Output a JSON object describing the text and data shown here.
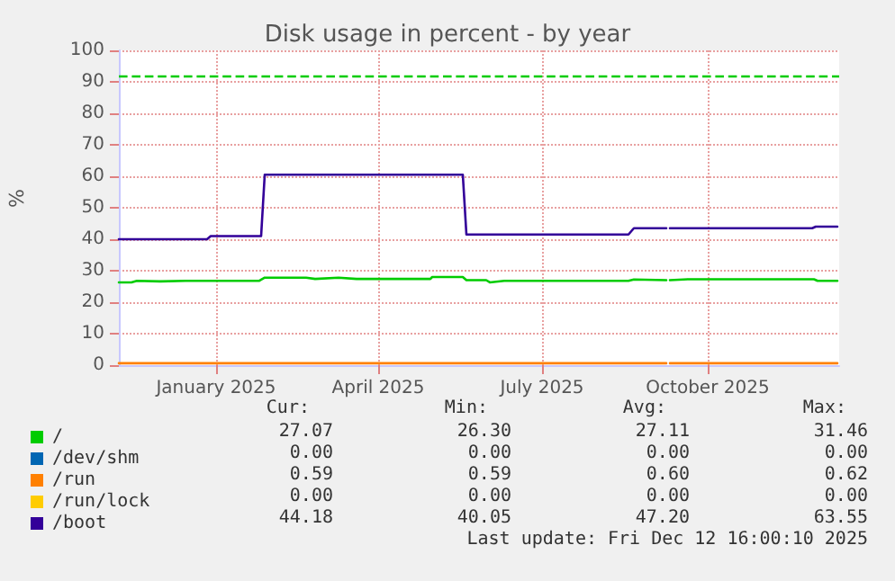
{
  "chart_data": {
    "type": "line",
    "title": "Disk usage in percent - by year",
    "ylabel": "%",
    "xlim": [
      "2024-11-08",
      "2025-12-13"
    ],
    "xticks": [
      {
        "value": "2025-01-01",
        "label": "January 2025"
      },
      {
        "value": "2025-04-01",
        "label": "April 2025"
      },
      {
        "value": "2025-07-01",
        "label": "July 2025"
      },
      {
        "value": "2025-10-01",
        "label": "October 2025"
      }
    ],
    "ylim": [
      0,
      100
    ],
    "yticks": [
      0,
      10,
      20,
      30,
      40,
      50,
      60,
      70,
      80,
      90,
      100
    ],
    "grid": true,
    "legend": "bottom left",
    "marker": "none",
    "line_style": "solid",
    "ref_lines": [
      {
        "axis": "y",
        "value": 92,
        "color": "#00cc00",
        "line_style": "dashed"
      }
    ],
    "series": [
      {
        "name": "/",
        "color": "#00cc00",
        "x": [
          "2024-11-08",
          "2024-11-15",
          "2024-11-18",
          "2024-12-01",
          "2024-12-15",
          "2025-01-25",
          "2025-01-28",
          "2025-02-20",
          "2025-02-25",
          "2025-03-10",
          "2025-03-20",
          "2025-04-30",
          "2025-05-01",
          "2025-05-18",
          "2025-05-20",
          "2025-05-31",
          "2025-06-02",
          "2025-06-10",
          "2025-08-18",
          "2025-08-21",
          "2025-09-08",
          "2025-09-09",
          "2025-09-10",
          "2025-09-20",
          "2025-10-15",
          "2025-11-29",
          "2025-12-01",
          "2025-12-12"
        ],
        "values": [
          26.3,
          26.3,
          26.8,
          26.6,
          26.8,
          26.8,
          27.8,
          27.8,
          27.4,
          27.8,
          27.4,
          27.4,
          28,
          28,
          27,
          27,
          26.3,
          26.8,
          26.8,
          27.2,
          27,
          null,
          27,
          27.3,
          27.3,
          27.3,
          26.8,
          26.8
        ]
      },
      {
        "name": "/dev/shm",
        "color": "#0066b3"
      },
      {
        "name": "/run",
        "color": "#ff8000",
        "x": [
          "2024-11-08",
          "2025-09-08",
          "2025-09-09",
          "2025-09-10",
          "2025-12-12"
        ],
        "values": [
          0.6,
          0.6,
          null,
          0.6,
          0.6
        ]
      },
      {
        "name": "/run/lock",
        "color": "#ffcc00"
      },
      {
        "name": "/boot",
        "color": "#330099",
        "x": [
          "2024-11-08",
          "2024-12-27",
          "2024-12-29",
          "2025-01-26",
          "2025-01-28",
          "2025-05-18",
          "2025-05-20",
          "2025-08-18",
          "2025-08-21",
          "2025-09-08",
          "2025-09-09",
          "2025-09-10",
          "2025-11-28",
          "2025-11-30",
          "2025-12-12"
        ],
        "values": [
          40,
          40,
          41,
          41,
          60.5,
          60.5,
          41.5,
          41.5,
          43.5,
          43.5,
          null,
          43.5,
          43.5,
          44,
          44
        ]
      }
    ],
    "annotations": [
      "Cur:",
      "Min:",
      "Avg:",
      "Max:",
      "27.07",
      "26.30",
      "27.11",
      "31.46",
      "0.00",
      "0.00",
      "0.00",
      "0.00",
      "0.59",
      "0.59",
      "0.60",
      "0.62",
      "0.00",
      "0.00",
      "0.00",
      "0.00",
      "44.18",
      "40.05",
      "47.20",
      "63.55",
      "Last update: Fri Dec 12 16:00:10 2025"
    ]
  }
}
